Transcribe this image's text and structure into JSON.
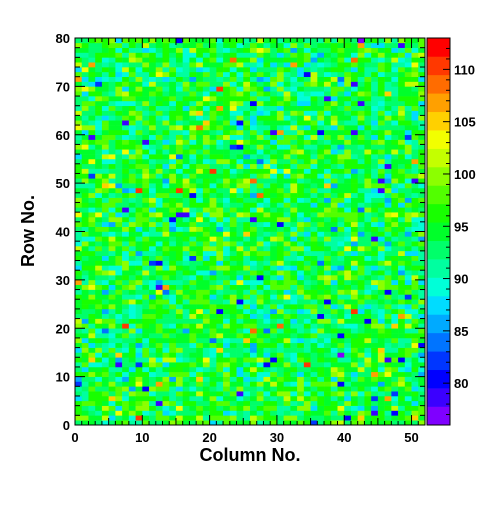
{
  "chart_data": {
    "type": "heatmap",
    "title": "",
    "xlabel": "Column No.",
    "ylabel": "Row No.",
    "x_bins": 52,
    "y_bins": 80,
    "xlim": [
      0,
      52
    ],
    "ylim": [
      0,
      80
    ],
    "x_ticks": [
      0,
      10,
      20,
      30,
      40,
      50
    ],
    "y_ticks": [
      0,
      10,
      20,
      30,
      40,
      50,
      60,
      70,
      80
    ],
    "z_range": [
      76,
      113
    ],
    "colorbar_ticks": [
      80,
      85,
      90,
      95,
      100,
      105,
      110
    ],
    "colorbar_palette": [
      "#7f00ff",
      "#3b00ff",
      "#0000ff",
      "#0036ff",
      "#0074ff",
      "#00aaff",
      "#00dcff",
      "#00ffd8",
      "#00ffa0",
      "#00ff6a",
      "#00ff2a",
      "#18ff00",
      "#52ff00",
      "#8cff00",
      "#c4ff00",
      "#f2ff00",
      "#ffd000",
      "#ffa000",
      "#ff6c00",
      "#ff3800",
      "#ff0000"
    ],
    "value_distribution": {
      "mean": 94.5,
      "spread": 3.6,
      "min": 77,
      "max": 112
    },
    "grid": false,
    "legend": "colorbar-right"
  }
}
